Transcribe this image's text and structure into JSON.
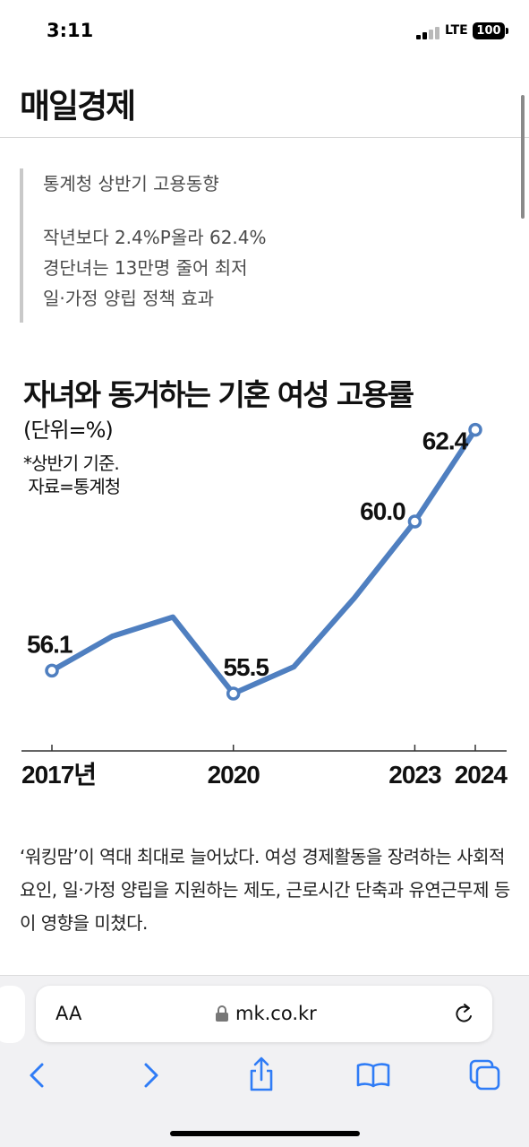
{
  "status_bar": {
    "time": "3:11",
    "network": "LTE",
    "battery": "100"
  },
  "header": {
    "site_name": "매일경제"
  },
  "summary": {
    "lines": [
      "통계청 상반기 고용동향",
      "작년보다 2.4%P올라 62.4%",
      "경단녀는 13만명 줄어 최저",
      "일·가정 양립 정책 효과"
    ]
  },
  "chart_data": {
    "type": "line",
    "title": "자녀와 동거하는 기혼 여성 고용률",
    "unit": "(단위=%)",
    "note_lines": [
      "*상반기 기준.",
      " 자료=통계청"
    ],
    "x": [
      2017,
      2018,
      2019,
      2020,
      2021,
      2022,
      2023,
      2024
    ],
    "x_tick_labels": [
      {
        "x": 2017,
        "label": "2017년"
      },
      {
        "x": 2020,
        "label": "2020"
      },
      {
        "x": 2023,
        "label": "2023"
      },
      {
        "x": 2024,
        "label": "2024"
      }
    ],
    "series": [
      {
        "values": [
          56.1,
          57.0,
          57.5,
          55.5,
          56.2,
          58.0,
          60.0,
          62.4
        ],
        "color": "#4f7fc0",
        "labeled_points": [
          {
            "x": 2017,
            "label": "56.1"
          },
          {
            "x": 2020,
            "label": "55.5"
          },
          {
            "x": 2023,
            "label": "60.0"
          },
          {
            "x": 2024,
            "label": "62.4"
          }
        ]
      }
    ],
    "ylim": [
      54,
      63
    ],
    "grid": false,
    "legend": "none"
  },
  "article": {
    "paragraph": "‘워킹맘’이 역대 최대로 늘어났다. 여성 경제활동을 장려하는 사회적 요인, 일·가정 양립을 지원하는 제도, 근로시간 단축과 유연근무제 등이 영향을 미쳤다."
  },
  "browser": {
    "text_size_label": "AA",
    "url": "mk.co.kr",
    "lock_icon": "lock-icon",
    "reload_icon": "reload-icon",
    "toolbar_icons": [
      "back-chevron-icon",
      "forward-chevron-icon",
      "share-icon",
      "bookmarks-icon",
      "tabs-icon"
    ]
  }
}
